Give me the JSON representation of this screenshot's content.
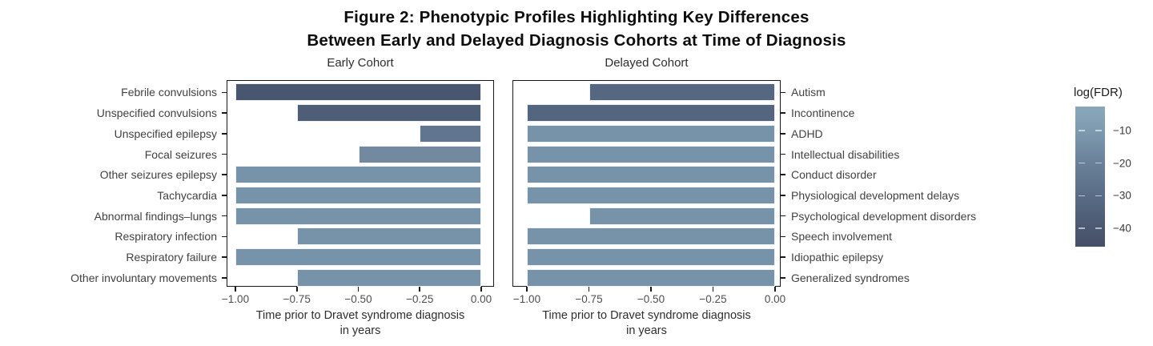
{
  "figure": {
    "title_line1": "Figure 2: Phenotypic Profiles Highlighting Key Differences",
    "title_line2": "Between Early and Delayed Diagnosis Cohorts at Time of Diagnosis"
  },
  "chart_data": {
    "type": "bar",
    "orientation": "horizontal",
    "x_axis": {
      "label_line1": "Time prior to Dravet syndrome diagnosis",
      "label_line2": "in years",
      "ticks": [
        -1.0,
        -0.75,
        -0.5,
        -0.25,
        0.0
      ],
      "tick_labels": [
        "−1.00",
        "−0.75",
        "−0.50",
        "−0.25",
        "0.00"
      ],
      "range": [
        -1.04,
        0.05
      ]
    },
    "panels": [
      {
        "key": "early",
        "title": "Early Cohort",
        "label_side": "left",
        "categories": [
          "Febrile convulsions",
          "Unspecified convulsions",
          "Unspecified epilepsy",
          "Focal seizures",
          "Other seizures epilepsy",
          "Tachycardia",
          "Abnormal findings–lungs",
          "Respiratory infection",
          "Respiratory failure",
          "Other involuntary movements"
        ],
        "values": [
          -1.0,
          -0.75,
          -0.25,
          -0.5,
          -1.0,
          -1.0,
          -1.0,
          -0.75,
          -1.0,
          -0.75
        ],
        "bar_colors": [
          "#485670",
          "#4F5E77",
          "#617590",
          "#73899F",
          "#7693A9",
          "#7693A9",
          "#7693A9",
          "#7693A9",
          "#7693A9",
          "#7693A9"
        ],
        "log_fdr_approx": [
          -44,
          -38,
          -24,
          -13,
          -10,
          -10,
          -10,
          -10,
          -10,
          -10
        ]
      },
      {
        "key": "delayed",
        "title": "Delayed Cohort",
        "label_side": "right",
        "categories": [
          "Autism",
          "Incontinence",
          "ADHD",
          "Intellectual disabilities",
          "Conduct disorder",
          "Physiological development delays",
          "Psychological development disorders",
          "Speech involvement",
          "Idiopathic epilepsy",
          "Generalized syndromes"
        ],
        "values": [
          -0.75,
          -1.0,
          -1.0,
          -1.0,
          -1.0,
          -1.0,
          -0.75,
          -1.0,
          -1.0,
          -1.0
        ],
        "bar_colors": [
          "#556781",
          "#53657F",
          "#7693A9",
          "#7693A9",
          "#7693A9",
          "#7693A9",
          "#7693A9",
          "#7693A9",
          "#7693A9",
          "#7693A9"
        ],
        "log_fdr_approx": [
          -31,
          -32,
          -10,
          -10,
          -10,
          -10,
          -10,
          -10,
          -10,
          -10
        ]
      }
    ],
    "colorbar": {
      "title": "log(FDR)",
      "ticks": [
        -10,
        -20,
        -30,
        -40
      ],
      "tick_labels": [
        "−10",
        "−20",
        "−30",
        "−40"
      ],
      "domain_top": -2.7,
      "domain_bottom": -45.6,
      "gradient": [
        {
          "pos": 0,
          "color": "#8BA8BB"
        },
        {
          "pos": 17,
          "color": "#7E9AAF"
        },
        {
          "pos": 40,
          "color": "#6A8199"
        },
        {
          "pos": 64,
          "color": "#596C85"
        },
        {
          "pos": 87,
          "color": "#4B5871"
        },
        {
          "pos": 100,
          "color": "#464F68"
        }
      ]
    }
  }
}
